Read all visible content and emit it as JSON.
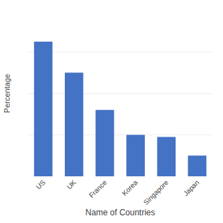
{
  "chart_data": {
    "type": "bar",
    "categories": [
      "US",
      "UK",
      "France",
      "Korea",
      "Singapore",
      "Japan"
    ],
    "values": [
      65,
      50,
      32,
      20,
      19,
      10
    ],
    "color": "#4472C4",
    "xlabel": "Name of Countries",
    "ylabel": "Percentage",
    "ylim": [
      0,
      80
    ],
    "yticks": [
      0,
      20,
      40,
      60,
      80
    ],
    "grid": true,
    "tick_labels": "x"
  }
}
